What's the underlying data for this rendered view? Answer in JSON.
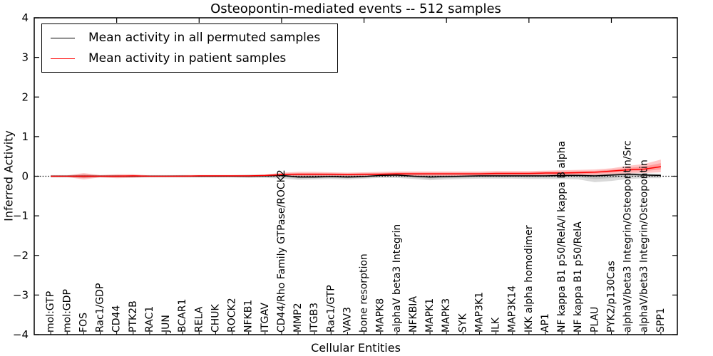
{
  "title": "Osteopontin-mediated events -- 512 samples",
  "legend": {
    "items": [
      {
        "label": "Mean activity in all permuted samples",
        "color": "#000000"
      },
      {
        "label": "Mean activity in patient samples",
        "color": "#ff0000"
      }
    ]
  },
  "chart_data": {
    "type": "line",
    "title": "Osteopontin-mediated events -- 512 samples",
    "xlabel": "Cellular Entities",
    "ylabel": "Inferred Activity",
    "ylim": [
      -4,
      4
    ],
    "yticks": [
      -4,
      -3,
      -2,
      -1,
      0,
      1,
      2,
      3,
      4
    ],
    "ytick_labels": [
      "−4",
      "−3",
      "−2",
      "−1",
      "0",
      "1",
      "2",
      "3",
      "4"
    ],
    "top_ticks": [
      5,
      10,
      15,
      20,
      25,
      30,
      35
    ],
    "grid": false,
    "legend_position": "upper left",
    "zero_line": "dotted",
    "categories": [
      "mol:GTP",
      "mol:GDP",
      "FOS",
      "Rac1/GDP",
      "CD44",
      "PTK2B",
      "RAC1",
      "JUN",
      "BCAR1",
      "RELA",
      "CHUK",
      "ROCK2",
      "NFKB1",
      "ITGAV",
      "CD44/Rho Family GTPase/ROCK2",
      "MMP2",
      "ITGB3",
      "Rac1/GTP",
      "VAV3",
      "bone resorption",
      "MAPK8",
      "alphaV beta3 Integrin",
      "NFKBIA",
      "MAPK1",
      "MAPK3",
      "SYK",
      "MAP3K1",
      "ILK",
      "MAP3K14",
      "IKK alpha homodimer",
      "AP1",
      "NF kappa B1 p50/RelA/I kappa B alpha",
      "NF kappa B1 p50/RelA",
      "PLAU",
      "PYK2/p130Cas",
      "alphaV/beta3 Integrin/Osteopontin/Src",
      "alphaV/beta3 Integrin/Osteopontin",
      "SPP1"
    ],
    "series": [
      {
        "name": "Mean activity in all permuted samples",
        "color": "#000000",
        "band_color": "rgba(128,128,128,0.30)",
        "values": [
          0,
          0,
          0,
          0,
          0,
          0,
          0,
          0,
          0,
          0,
          0,
          0,
          0,
          0.01,
          0.02,
          -0.02,
          -0.02,
          -0.01,
          -0.02,
          -0.01,
          0.02,
          0.03,
          0,
          -0.02,
          -0.01,
          0,
          0.01,
          0.01,
          0.01,
          0.01,
          0.01,
          0.02,
          0.02,
          0.01,
          0.03,
          0.05,
          0.03,
          0.02
        ],
        "band_lo": [
          -0.03,
          -0.03,
          -0.04,
          -0.03,
          -0.03,
          -0.03,
          -0.03,
          -0.03,
          -0.03,
          -0.03,
          -0.03,
          -0.03,
          -0.04,
          -0.04,
          -0.06,
          -0.09,
          -0.08,
          -0.07,
          -0.08,
          -0.06,
          -0.04,
          -0.04,
          -0.07,
          -0.1,
          -0.08,
          -0.07,
          -0.06,
          -0.06,
          -0.06,
          -0.07,
          -0.07,
          -0.07,
          -0.08,
          -0.15,
          -0.12,
          -0.07,
          -0.05,
          -0.05
        ],
        "band_hi": [
          0.03,
          0.03,
          0.04,
          0.03,
          0.03,
          0.03,
          0.03,
          0.03,
          0.03,
          0.03,
          0.03,
          0.03,
          0.04,
          0.04,
          0.05,
          0.04,
          0.04,
          0.04,
          0.04,
          0.04,
          0.06,
          0.07,
          0.05,
          0.04,
          0.04,
          0.04,
          0.05,
          0.05,
          0.05,
          0.05,
          0.05,
          0.05,
          0.05,
          0.05,
          0.07,
          0.09,
          0.07,
          0.06
        ]
      },
      {
        "name": "Mean activity in patient samples",
        "color": "#ff0000",
        "band_color": "rgba(255,0,0,0.22)",
        "values": [
          0,
          0,
          0,
          0,
          0,
          0.01,
          0,
          0,
          0,
          0.01,
          0.01,
          0.01,
          0.01,
          0.02,
          0.04,
          0.05,
          0.05,
          0.05,
          0.04,
          0.05,
          0.05,
          0.06,
          0.06,
          0.06,
          0.06,
          0.06,
          0.06,
          0.07,
          0.07,
          0.07,
          0.08,
          0.08,
          0.09,
          0.1,
          0.13,
          0.16,
          0.18,
          0.24
        ],
        "band_lo": [
          -0.02,
          -0.02,
          -0.08,
          -0.03,
          -0.05,
          -0.04,
          -0.02,
          -0.02,
          -0.02,
          -0.02,
          -0.02,
          -0.02,
          -0.02,
          -0.01,
          0,
          0,
          0,
          0,
          0,
          0,
          0,
          0.01,
          0.01,
          0.01,
          0.01,
          0.01,
          0.01,
          0.01,
          0.02,
          0.02,
          0.02,
          0.02,
          0.03,
          0.03,
          0.05,
          0.07,
          0.08,
          0.1
        ],
        "band_hi": [
          0.02,
          0.02,
          0.08,
          0.03,
          0.05,
          0.05,
          0.02,
          0.02,
          0.03,
          0.03,
          0.03,
          0.03,
          0.03,
          0.04,
          0.09,
          0.11,
          0.11,
          0.1,
          0.09,
          0.1,
          0.11,
          0.12,
          0.12,
          0.12,
          0.12,
          0.12,
          0.12,
          0.13,
          0.13,
          0.13,
          0.14,
          0.15,
          0.16,
          0.17,
          0.2,
          0.26,
          0.31,
          0.42
        ]
      }
    ]
  }
}
